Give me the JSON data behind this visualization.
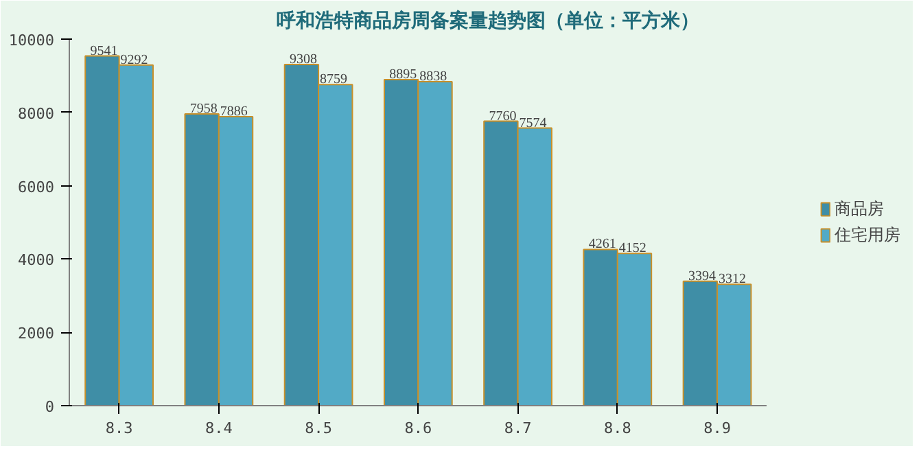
{
  "chart_data": {
    "type": "bar",
    "title": "呼和浩特商品房周备案量趋势图（单位：平方米）",
    "categories": [
      "8.3",
      "8.4",
      "8.5",
      "8.6",
      "8.7",
      "8.8",
      "8.9"
    ],
    "series": [
      {
        "name": "商品房",
        "color": "#3f8ea6",
        "values": [
          9541,
          7958,
          9308,
          8895,
          7760,
          4261,
          3394
        ]
      },
      {
        "name": "住宅用房",
        "color": "#52aac6",
        "values": [
          9292,
          7886,
          8759,
          8838,
          7574,
          4152,
          3312
        ]
      }
    ],
    "ylim": [
      0,
      10000
    ],
    "yticks": [
      0,
      2000,
      4000,
      6000,
      8000,
      10000
    ],
    "data_labels": true,
    "grid": false,
    "legend": "right"
  }
}
